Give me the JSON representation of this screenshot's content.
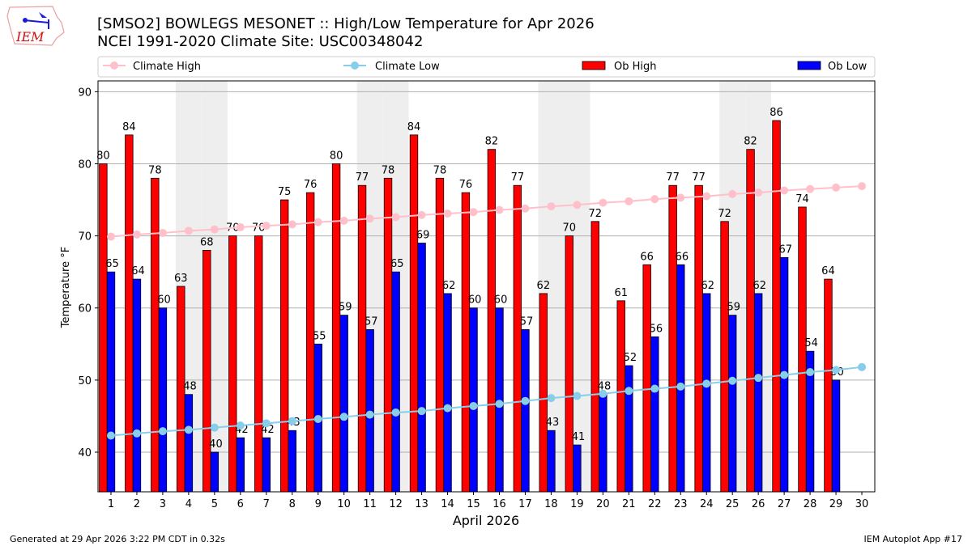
{
  "header": {
    "title_line1": "[SMSO2] BOWLEGS MESONET :: High/Low Temperature for Apr 2026",
    "title_line2": "NCEI 1991-2020 Climate Site: USC00348042",
    "logo_text": "IEM"
  },
  "footer": {
    "generated": "Generated at 29 Apr 2026 3:22 PM CDT in 0.32s",
    "app": "IEM Autoplot App #17"
  },
  "colors": {
    "ob_high": "#ff0000",
    "ob_low": "#0000ff",
    "climate_high": "#ffc0cb",
    "climate_low": "#87ceeb",
    "weekend": "#eeeeee"
  },
  "chart_data": {
    "type": "bar",
    "xlabel": "April 2026",
    "ylabel": "Temperature °F",
    "xlim": [
      0.5,
      30.5
    ],
    "ylim": [
      34.5,
      91.5
    ],
    "yticks": [
      40,
      50,
      60,
      70,
      80,
      90
    ],
    "grid": true,
    "legend_placement": "top",
    "x": [
      1,
      2,
      3,
      4,
      5,
      6,
      7,
      8,
      9,
      10,
      11,
      12,
      13,
      14,
      15,
      16,
      17,
      18,
      19,
      20,
      21,
      22,
      23,
      24,
      25,
      26,
      27,
      28,
      29,
      30
    ],
    "weekend_days": [
      4,
      5,
      11,
      12,
      18,
      19,
      25,
      26
    ],
    "series": [
      {
        "name": "Climate High",
        "kind": "line",
        "values": [
          69.9,
          70.2,
          70.4,
          70.7,
          70.9,
          71.2,
          71.4,
          71.6,
          71.9,
          72.1,
          72.4,
          72.6,
          72.9,
          73.1,
          73.3,
          73.6,
          73.8,
          74.1,
          74.3,
          74.6,
          74.8,
          75.1,
          75.3,
          75.5,
          75.8,
          76.0,
          76.3,
          76.5,
          76.7,
          76.9
        ]
      },
      {
        "name": "Climate Low",
        "kind": "line",
        "values": [
          42.3,
          42.6,
          42.9,
          43.1,
          43.4,
          43.7,
          44.0,
          44.3,
          44.6,
          44.9,
          45.2,
          45.5,
          45.7,
          46.1,
          46.4,
          46.7,
          47.1,
          47.5,
          47.8,
          48.1,
          48.5,
          48.8,
          49.1,
          49.5,
          49.9,
          50.3,
          50.7,
          51.1,
          51.4,
          51.8
        ]
      },
      {
        "name": "Ob High",
        "kind": "bar",
        "values": [
          80,
          84,
          78,
          63,
          68,
          70,
          70,
          75,
          76,
          80,
          77,
          78,
          84,
          78,
          76,
          82,
          77,
          62,
          70,
          72,
          61,
          66,
          77,
          77,
          72,
          82,
          86,
          74,
          64,
          null
        ]
      },
      {
        "name": "Ob Low",
        "kind": "bar",
        "values": [
          65,
          64,
          60,
          48,
          40,
          42,
          42,
          43,
          55,
          59,
          57,
          65,
          69,
          62,
          60,
          60,
          57,
          43,
          41,
          48,
          52,
          56,
          66,
          62,
          59,
          62,
          67,
          54,
          50,
          null
        ]
      }
    ]
  }
}
